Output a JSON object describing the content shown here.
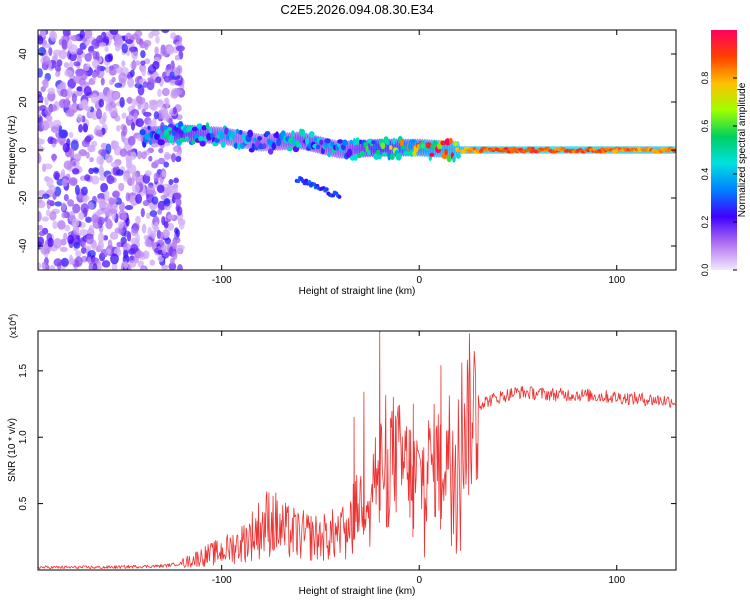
{
  "title": "C2E5.2026.094.08.30.E34",
  "chart_data": [
    {
      "type": "heatmap",
      "xlabel": "Height of straight line (km)",
      "ylabel": "Frequency (Hz)",
      "xlim": [
        -193,
        130
      ],
      "ylim": [
        -50,
        50
      ],
      "x_ticks": [
        -100,
        0,
        100
      ],
      "x_tick_labels": [
        "-100",
        "0",
        "100"
      ],
      "y_ticks": [
        -40,
        -20,
        0,
        20,
        40
      ],
      "y_tick_labels": [
        "-40",
        "-20",
        "0",
        "20",
        "40"
      ],
      "colorbar": {
        "label": "Normalized spectral amplitude",
        "range": [
          0,
          1
        ],
        "ticks": [
          0.0,
          0.2,
          0.4,
          0.6,
          0.8
        ],
        "tick_labels": [
          "0.0",
          "0.2",
          "0.4",
          "0.6",
          "0.8"
        ],
        "colors": [
          "#f0e8ff",
          "#b070f0",
          "#4000ff",
          "#0080ff",
          "#00e0e0",
          "#00d060",
          "#a0ff00",
          "#ffc000",
          "#ff4000",
          "#ff0060"
        ]
      },
      "ridge": {
        "x": [
          -140,
          -120,
          -100,
          -80,
          -60,
          -40,
          -20,
          0,
          20,
          40,
          60,
          80,
          100,
          130
        ],
        "frequency": [
          6,
          7,
          6,
          3,
          4,
          0,
          1,
          1,
          0,
          0,
          0,
          0,
          0,
          0
        ],
        "amplitude": [
          0.3,
          0.45,
          0.35,
          0.3,
          0.4,
          0.35,
          0.5,
          0.7,
          0.85,
          0.95,
          0.95,
          0.95,
          0.9,
          0.9
        ]
      },
      "noise_region_x": [
        -193,
        -120
      ]
    },
    {
      "type": "line",
      "xlabel": "Height of straight line (km)",
      "ylabel": "SNR (10 * v/v)",
      "y_multiplier_label": "(x10",
      "y_multiplier_exponent": "4",
      "xlim": [
        -193,
        130
      ],
      "ylim": [
        0,
        1.8
      ],
      "x_ticks": [
        -100,
        0,
        100
      ],
      "x_tick_labels": [
        "-100",
        "0",
        "100"
      ],
      "y_ticks": [
        0.5,
        1.0,
        1.5
      ],
      "y_tick_labels": [
        "0.5",
        "1.0",
        "1.5"
      ],
      "line_color": "#ee3333",
      "series": [
        {
          "name": "SNR",
          "x": [
            -193,
            -160,
            -130,
            -120,
            -110,
            -100,
            -90,
            -80,
            -75,
            -70,
            -60,
            -50,
            -40,
            -35,
            -30,
            -25,
            -20,
            -15,
            -10,
            -5,
            0,
            5,
            10,
            15,
            20,
            25,
            30,
            40,
            50,
            60,
            70,
            80,
            90,
            100,
            110,
            120,
            130
          ],
          "y": [
            0.02,
            0.02,
            0.03,
            0.05,
            0.1,
            0.14,
            0.2,
            0.32,
            0.38,
            0.3,
            0.26,
            0.24,
            0.28,
            0.4,
            0.5,
            0.65,
            0.8,
            0.9,
            0.82,
            0.75,
            0.7,
            0.78,
            0.85,
            0.9,
            1.05,
            1.15,
            1.25,
            1.3,
            1.34,
            1.33,
            1.32,
            1.32,
            1.31,
            1.3,
            1.29,
            1.28,
            1.27
          ]
        }
      ],
      "spikes": [
        {
          "x": -20,
          "y": 1.8
        },
        {
          "x": -28,
          "y": 1.34
        },
        {
          "x": 11,
          "y": 1.54
        },
        {
          "x": -3,
          "y": 1.25
        },
        {
          "x": -33,
          "y": 1.15
        }
      ]
    }
  ]
}
